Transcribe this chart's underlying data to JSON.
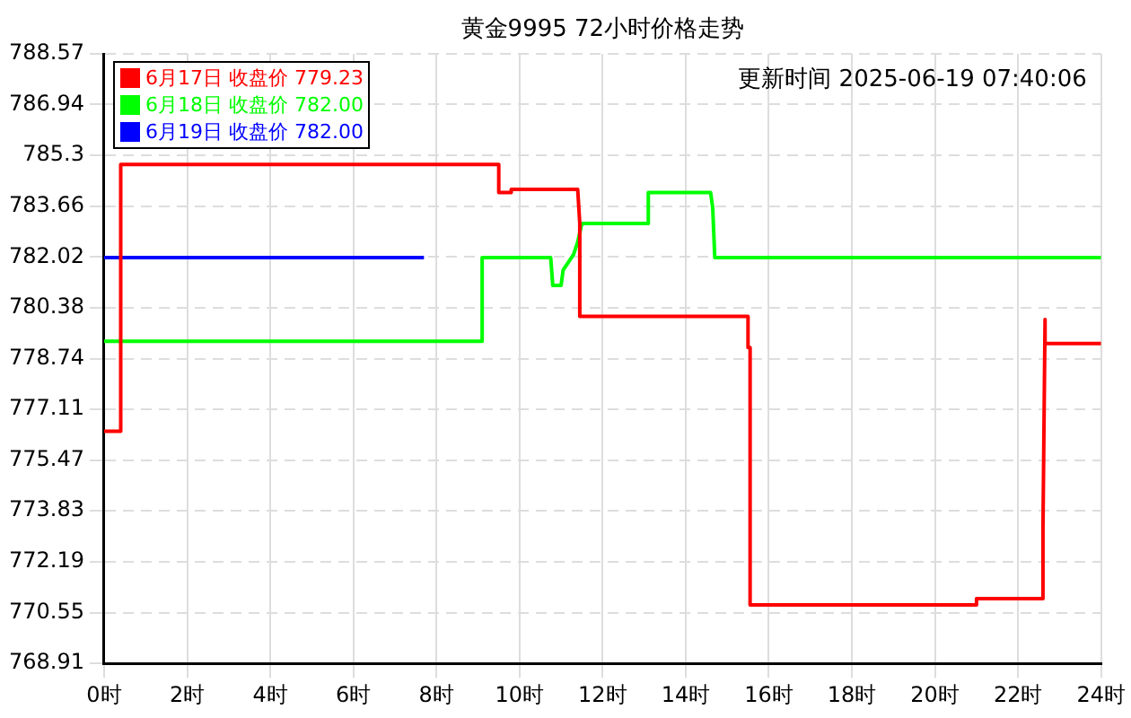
{
  "chart_data": {
    "type": "line",
    "title": "黄金9995 72小时价格走势",
    "annotations": [
      "更新时间 2025-06-19 07:40:06"
    ],
    "xlim": [
      0,
      24
    ],
    "xticks": [
      {
        "value": 0,
        "label": "0时"
      },
      {
        "value": 2,
        "label": "2时"
      },
      {
        "value": 4,
        "label": "4时"
      },
      {
        "value": 6,
        "label": "6时"
      },
      {
        "value": 8,
        "label": "8时"
      },
      {
        "value": 10,
        "label": "10时"
      },
      {
        "value": 12,
        "label": "12时"
      },
      {
        "value": 14,
        "label": "14时"
      },
      {
        "value": 16,
        "label": "16时"
      },
      {
        "value": 18,
        "label": "18时"
      },
      {
        "value": 20,
        "label": "20时"
      },
      {
        "value": 22,
        "label": "22时"
      },
      {
        "value": 24,
        "label": "24时"
      }
    ],
    "ylim": [
      768.91,
      788.57
    ],
    "yticks": [
      768.91,
      770.55,
      772.19,
      773.83,
      775.47,
      777.11,
      778.74,
      780.38,
      782.02,
      783.66,
      785.3,
      786.94,
      788.57
    ],
    "grid": true,
    "legend": "top left",
    "marker": "none",
    "line_style": "solid",
    "series": [
      {
        "name": "6月17日 收盘价 779.23",
        "color": "#ff0000",
        "x": [
          0,
          0.4,
          0.4,
          9.5,
          9.5,
          9.8,
          9.8,
          11.4,
          11.45,
          11.45,
          15.5,
          15.5,
          15.55,
          15.55,
          21.0,
          21.0,
          22.6,
          22.6,
          22.65,
          22.65,
          24
        ],
        "values": [
          776.4,
          776.4,
          785.0,
          785.0,
          784.1,
          784.1,
          784.2,
          784.2,
          783.1,
          780.1,
          780.1,
          779.1,
          779.1,
          770.8,
          770.8,
          771.0,
          771.0,
          773.3,
          780.0,
          779.23,
          779.23
        ]
      },
      {
        "name": "6月18日 收盘价 782.00",
        "color": "#00ff00",
        "x": [
          0,
          9.1,
          9.1,
          10.75,
          10.8,
          11.0,
          11.05,
          11.3,
          11.4,
          11.5,
          11.6,
          13.1,
          13.1,
          14.6,
          14.65,
          14.7,
          24
        ],
        "values": [
          779.3,
          779.3,
          782.0,
          782.0,
          781.1,
          781.1,
          781.6,
          782.1,
          782.5,
          783.1,
          783.1,
          783.1,
          784.1,
          784.1,
          783.6,
          782.0,
          782.0
        ]
      },
      {
        "name": "6月19日 收盘价 782.00",
        "color": "#0000ff",
        "x": [
          0,
          7.7
        ],
        "values": [
          782.0,
          782.0
        ]
      }
    ]
  }
}
